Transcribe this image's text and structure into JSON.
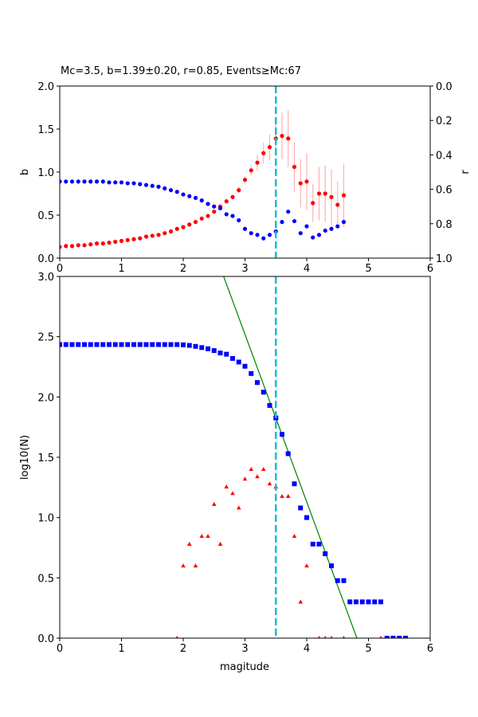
{
  "chart_data": [
    {
      "type": "scatter",
      "title": "Mc=3.5, b=1.39±0.20, r=0.85, Events≥Mc:67",
      "xlabel": "",
      "ylabel": "b",
      "ylabel_right": "r",
      "xlim": [
        0,
        6
      ],
      "ylim": [
        0,
        2.0
      ],
      "ylim_right": [
        1.0,
        0.0
      ],
      "xticks": [
        "0",
        "1",
        "2",
        "3",
        "4",
        "5",
        "6"
      ],
      "yticks": [
        "0.0",
        "0.5",
        "1.0",
        "1.5",
        "2.0"
      ],
      "yticks_right": [
        "0.0",
        "0.2",
        "0.4",
        "0.6",
        "0.8",
        "1.0"
      ],
      "mc_line": 3.5,
      "x": [
        0.0,
        0.1,
        0.2,
        0.3,
        0.4,
        0.5,
        0.6,
        0.7,
        0.8,
        0.9,
        1.0,
        1.1,
        1.2,
        1.3,
        1.4,
        1.5,
        1.6,
        1.7,
        1.8,
        1.9,
        2.0,
        2.1,
        2.2,
        2.3,
        2.4,
        2.5,
        2.6,
        2.7,
        2.8,
        2.9,
        3.0,
        3.1,
        3.2,
        3.3,
        3.4,
        3.5,
        3.6,
        3.7,
        3.8,
        3.9,
        4.0,
        4.1,
        4.2,
        4.3,
        4.4,
        4.5,
        4.6
      ],
      "series": [
        {
          "name": "b",
          "axis": "left",
          "color": "#ff0000",
          "values": [
            0.13,
            0.14,
            0.14,
            0.15,
            0.15,
            0.16,
            0.17,
            0.17,
            0.18,
            0.19,
            0.2,
            0.21,
            0.22,
            0.23,
            0.25,
            0.26,
            0.27,
            0.29,
            0.31,
            0.34,
            0.36,
            0.39,
            0.42,
            0.46,
            0.49,
            0.54,
            0.6,
            0.66,
            0.71,
            0.79,
            0.91,
            1.02,
            1.11,
            1.22,
            1.29,
            1.39,
            1.42,
            1.39,
            1.06,
            0.87,
            0.89,
            0.64,
            0.75,
            0.75,
            0.71,
            0.62,
            0.73
          ],
          "errors": [
            0.01,
            0.01,
            0.01,
            0.01,
            0.01,
            0.01,
            0.01,
            0.01,
            0.01,
            0.01,
            0.01,
            0.01,
            0.01,
            0.01,
            0.01,
            0.01,
            0.01,
            0.01,
            0.01,
            0.01,
            0.01,
            0.01,
            0.01,
            0.01,
            0.01,
            0.02,
            0.02,
            0.03,
            0.03,
            0.04,
            0.05,
            0.06,
            0.09,
            0.12,
            0.15,
            0.2,
            0.27,
            0.33,
            0.29,
            0.28,
            0.33,
            0.22,
            0.31,
            0.33,
            0.32,
            0.27,
            0.37
          ]
        },
        {
          "name": "r",
          "axis": "right",
          "color": "#0000ff",
          "values": [
            0.555,
            0.555,
            0.555,
            0.555,
            0.555,
            0.555,
            0.555,
            0.555,
            0.56,
            0.56,
            0.56,
            0.565,
            0.565,
            0.57,
            0.575,
            0.58,
            0.585,
            0.595,
            0.605,
            0.615,
            0.63,
            0.64,
            0.65,
            0.665,
            0.685,
            0.7,
            0.71,
            0.745,
            0.755,
            0.78,
            0.83,
            0.855,
            0.865,
            0.885,
            0.865,
            0.845,
            0.79,
            0.73,
            0.785,
            0.855,
            0.815,
            0.88,
            0.865,
            0.84,
            0.83,
            0.815,
            0.79
          ]
        }
      ]
    },
    {
      "type": "scatter",
      "xlabel": "magitude",
      "ylabel": "log10(N)",
      "xlim": [
        0,
        6
      ],
      "ylim": [
        0,
        3.0
      ],
      "xticks": [
        "0",
        "1",
        "2",
        "3",
        "4",
        "5",
        "6"
      ],
      "yticks": [
        "0.0",
        "0.5",
        "1.0",
        "1.5",
        "2.0",
        "2.5",
        "3.0"
      ],
      "mc_line": 3.5,
      "fit_line": {
        "a": 6.69,
        "b": 1.39,
        "color": "#008000"
      },
      "series": [
        {
          "name": "cumulative",
          "marker": "square",
          "color": "#0000ff",
          "x": [
            0.0,
            0.1,
            0.2,
            0.3,
            0.4,
            0.5,
            0.6,
            0.7,
            0.8,
            0.9,
            1.0,
            1.1,
            1.2,
            1.3,
            1.4,
            1.5,
            1.6,
            1.7,
            1.8,
            1.9,
            2.0,
            2.1,
            2.2,
            2.3,
            2.4,
            2.5,
            2.6,
            2.7,
            2.8,
            2.9,
            3.0,
            3.1,
            3.2,
            3.3,
            3.4,
            3.5,
            3.6,
            3.7,
            3.8,
            3.9,
            4.0,
            4.1,
            4.2,
            4.3,
            4.4,
            4.5,
            4.6,
            4.7,
            4.8,
            4.9,
            5.0,
            5.1,
            5.2,
            5.3,
            5.4,
            5.5,
            5.6
          ],
          "values": [
            2.435,
            2.435,
            2.435,
            2.435,
            2.435,
            2.435,
            2.435,
            2.435,
            2.435,
            2.435,
            2.435,
            2.435,
            2.435,
            2.435,
            2.435,
            2.435,
            2.435,
            2.435,
            2.435,
            2.435,
            2.433,
            2.428,
            2.42,
            2.41,
            2.4,
            2.385,
            2.365,
            2.355,
            2.32,
            2.29,
            2.255,
            2.195,
            2.12,
            2.04,
            1.93,
            1.826,
            1.69,
            1.53,
            1.28,
            1.08,
            1.0,
            0.78,
            0.78,
            0.7,
            0.6,
            0.477,
            0.477,
            0.301,
            0.301,
            0.301,
            0.301,
            0.301,
            0.301,
            0,
            0,
            0,
            0
          ]
        },
        {
          "name": "non-cumulative",
          "marker": "triangle",
          "color": "#ff0000",
          "x": [
            1.9,
            2.0,
            2.1,
            2.2,
            2.3,
            2.4,
            2.5,
            2.6,
            2.7,
            2.8,
            2.9,
            3.0,
            3.1,
            3.2,
            3.3,
            3.4,
            3.5,
            3.6,
            3.7,
            3.8,
            3.9,
            4.0,
            4.2,
            4.3,
            4.4,
            4.6,
            5.2
          ],
          "values": [
            0,
            0.6,
            0.78,
            0.6,
            0.845,
            0.845,
            1.11,
            0.78,
            1.255,
            1.2,
            1.08,
            1.32,
            1.4,
            1.34,
            1.4,
            1.28,
            1.255,
            1.176,
            1.176,
            0.845,
            0.3,
            0.6,
            0,
            0,
            0,
            0,
            0
          ]
        }
      ]
    }
  ]
}
